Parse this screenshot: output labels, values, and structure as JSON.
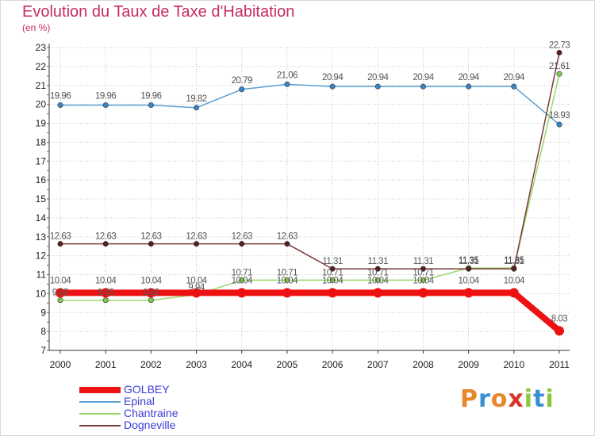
{
  "title": "Evolution du Taux de Taxe d'Habitation",
  "subtitle": "(en %)",
  "brand": {
    "letters": [
      "P",
      "r",
      "o",
      "x",
      "i",
      "t",
      "i"
    ],
    "colors": [
      "#e8862c",
      "#3a8fd0",
      "#e8862c",
      "#d8342c",
      "#8cc63f",
      "#3a8fd0",
      "#8cc63f"
    ]
  },
  "chart_data": {
    "type": "line",
    "title": "Evolution du Taux de Taxe d'Habitation",
    "ylabel": "(en %)",
    "xlabel": "",
    "ylim": [
      7,
      23
    ],
    "yticks": [
      "7",
      "8",
      "9",
      "10",
      "11",
      "12",
      "13",
      "14",
      "15",
      "16",
      "17",
      "18",
      "19",
      "20",
      "21",
      "22",
      "23"
    ],
    "categories": [
      "2000",
      "2001",
      "2002",
      "2003",
      "2004",
      "2005",
      "2006",
      "2007",
      "2008",
      "2009",
      "2010",
      "2011"
    ],
    "series": [
      {
        "name": "GOLBEY",
        "color": "#ee1111",
        "values": [
          10.04,
          10.04,
          10.04,
          10.04,
          10.04,
          10.04,
          10.04,
          10.04,
          10.04,
          10.04,
          10.04,
          8.03
        ],
        "labels": [
          "10.04",
          "10.04",
          "10.04",
          "10.04",
          "10.04",
          "10.04",
          "10.04",
          "10.04",
          "10.04",
          "10.04",
          "10.04",
          "8.03"
        ]
      },
      {
        "name": "Epinal",
        "color": "#5a9fd4",
        "values": [
          19.96,
          19.96,
          19.96,
          19.82,
          20.79,
          21.06,
          20.94,
          20.94,
          20.94,
          20.94,
          20.94,
          18.93
        ],
        "labels": [
          "19.96",
          "19.96",
          "19.96",
          "19.82",
          "20.79",
          "21.06",
          "20.94",
          "20.94",
          "20.94",
          "20.94",
          "20.94",
          "18.93"
        ]
      },
      {
        "name": "Chantraine",
        "color": "#9ad86a",
        "values": [
          9.65,
          9.65,
          9.65,
          9.94,
          10.71,
          10.71,
          10.71,
          10.71,
          10.71,
          11.35,
          11.35,
          21.61
        ],
        "labels": [
          "9.65",
          "9.65",
          "9.65",
          "9.94",
          "10.71",
          "10.71",
          "10.71",
          "10.71",
          "10.71",
          "11.35",
          "11.35",
          "21.61"
        ]
      },
      {
        "name": "Dogneville",
        "color": "#7a3a3a",
        "values": [
          12.63,
          12.63,
          12.63,
          12.63,
          12.63,
          12.63,
          11.31,
          11.31,
          11.31,
          11.31,
          11.31,
          22.73
        ],
        "labels": [
          "12.63",
          "12.63",
          "12.63",
          "12.63",
          "12.63",
          "12.63",
          "11.31",
          "11.31",
          "11.31",
          "11.31",
          "11.31",
          "22.73"
        ]
      }
    ]
  }
}
